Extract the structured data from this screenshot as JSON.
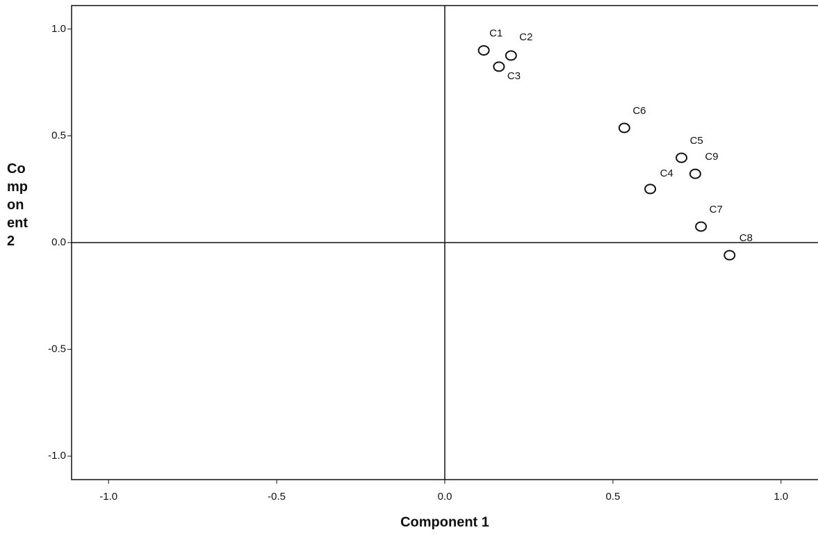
{
  "chart_data": {
    "type": "scatter",
    "x_label": "Component 1",
    "y_label": "Component 2",
    "labels": [
      "C1",
      "C2",
      "C3",
      "C6",
      "C5",
      "C9",
      "C4",
      "C7",
      "C8"
    ],
    "x": [
      0.116,
      0.197,
      0.161,
      0.534,
      0.704,
      0.745,
      0.611,
      0.762,
      0.847
    ],
    "y": [
      0.9,
      0.876,
      0.824,
      0.537,
      0.397,
      0.322,
      0.251,
      0.075,
      -0.059
    ],
    "xlim": [
      -1.11,
      1.11
    ],
    "ylim": [
      -1.11,
      1.11
    ],
    "xticks": [
      {
        "value": -1,
        "label": "-1.0"
      },
      {
        "value": -0.5,
        "label": "-0.5"
      },
      {
        "value": 0,
        "label": "0.0"
      },
      {
        "value": 0.5,
        "label": "0.5"
      },
      {
        "value": 1,
        "label": "1.0"
      }
    ],
    "yticks": [
      {
        "value": -1,
        "label": "-1.0"
      },
      {
        "value": -0.5,
        "label": "-0.5"
      },
      {
        "value": 0,
        "label": "0.0"
      },
      {
        "value": 0.5,
        "label": "0.5"
      },
      {
        "value": 1,
        "label": "1.0"
      }
    ],
    "reference_lines": {
      "x": 0,
      "y": 0
    },
    "marker_color": "#111111"
  }
}
